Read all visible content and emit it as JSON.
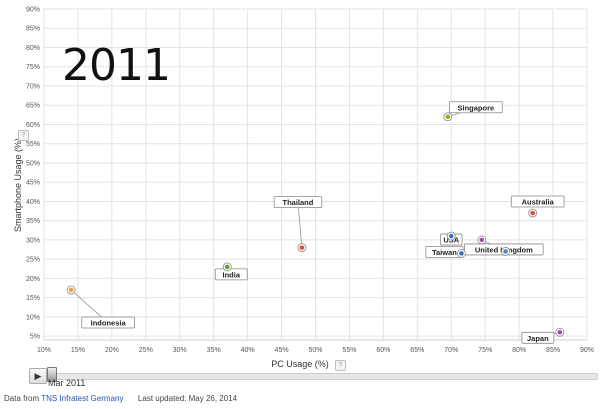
{
  "year_label": "2011",
  "chart_data": {
    "type": "scatter",
    "xlabel": "PC Usage (%)",
    "ylabel": "Smartphone Usage (%)",
    "xlim": [
      10,
      90
    ],
    "ylim": [
      4,
      90
    ],
    "x_ticks": [
      "10%",
      "15%",
      "20%",
      "25%",
      "30%",
      "35%",
      "40%",
      "45%",
      "50%",
      "55%",
      "60%",
      "65%",
      "70%",
      "75%",
      "80%",
      "85%",
      "90%"
    ],
    "y_ticks": [
      "5%",
      "10%",
      "15%",
      "20%",
      "25%",
      "30%",
      "35%",
      "40%",
      "45%",
      "50%",
      "55%",
      "60%",
      "65%",
      "70%",
      "75%",
      "80%",
      "85%",
      "90%"
    ],
    "grid": true,
    "points": [
      {
        "label": "Indonesia",
        "x": 14,
        "y": 17,
        "color": "#f0a04b"
      },
      {
        "label": "India",
        "x": 37,
        "y": 23,
        "color": "#5aa02c"
      },
      {
        "label": "Thailand",
        "x": 48,
        "y": 28,
        "color": "#d94c4c"
      },
      {
        "label": "Singapore",
        "x": 69.5,
        "y": 62,
        "color": "#9aaa1e"
      },
      {
        "label": "USA",
        "x": 70,
        "y": 31,
        "color": "#3b6fc9"
      },
      {
        "label": "Taiwan",
        "x": 71.5,
        "y": 26.5,
        "color": "#3b6fc9"
      },
      {
        "label": "United Kingdom",
        "x": 74.5,
        "y": 30,
        "color": "#a44ca8"
      },
      {
        "label": "",
        "x": 78,
        "y": 27,
        "color": "#4a86c8"
      },
      {
        "label": "Australia",
        "x": 82,
        "y": 37,
        "color": "#d94c4c"
      },
      {
        "label": "Japan",
        "x": 86,
        "y": 6,
        "color": "#a44ca8"
      }
    ]
  },
  "timeline": {
    "date": "Mar 2011"
  },
  "footer": {
    "data_from_label": "Data from",
    "source": "TNS Infratest Germany",
    "updated_label": "Last updated: May 26, 2014"
  }
}
